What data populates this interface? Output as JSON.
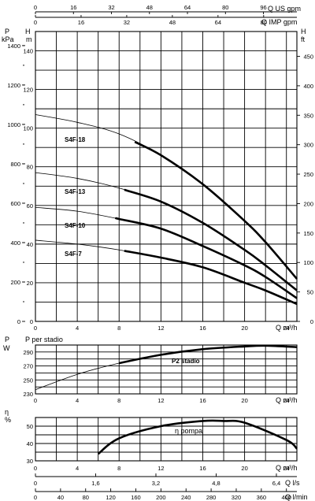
{
  "top_axes": {
    "us_gpm": {
      "label": "Q US gpm",
      "ticks": [
        "0",
        "16",
        "32",
        "48",
        "64",
        "80",
        "96"
      ]
    },
    "imp_gpm": {
      "label": "Q IMP gpm",
      "ticks": [
        "0",
        "16",
        "32",
        "48",
        "64",
        "80"
      ]
    }
  },
  "head_chart": {
    "p_label": "P",
    "p_unit": "kPa",
    "h_left_label": "H",
    "h_left_unit": "m",
    "h_right_label": "H",
    "h_right_unit": "ft",
    "p_ticks": [
      "0",
      "200",
      "400",
      "600",
      "800",
      "1000",
      "1200",
      "1400"
    ],
    "m_ticks": [
      "140",
      "120",
      "100",
      "80",
      "60",
      "40",
      "20",
      "0"
    ],
    "ft_ticks": [
      "0",
      "50",
      "100",
      "150",
      "200",
      "250",
      "300",
      "350",
      "400",
      "450"
    ],
    "x_ticks": [
      "0",
      "4",
      "8",
      "12",
      "16",
      "20",
      "24"
    ],
    "x_label": "Q m³/h"
  },
  "power_chart": {
    "title": "P per stadio",
    "unit": "W",
    "y_ticks": [
      "230",
      "250",
      "270",
      "290"
    ],
    "x_ticks": [
      "0",
      "4",
      "8",
      "12",
      "16",
      "20",
      "24"
    ],
    "x_label": "Q m³/h"
  },
  "eff_chart": {
    "symbol": "η",
    "unit": "%",
    "y_ticks": [
      "40",
      "50"
    ],
    "y_ticks_minor": [
      "30",
      "40"
    ],
    "x_ticks": [
      "0",
      "4",
      "8",
      "12",
      "16",
      "20",
      "24"
    ],
    "x_label": "Q m³/h"
  },
  "bottom_axes": {
    "ls": {
      "label": "Q l/s",
      "ticks": [
        "0",
        "1,6",
        "3,2",
        "4,8",
        "6,4"
      ]
    },
    "lmin": {
      "label": "Q l/min",
      "ticks": [
        "0",
        "40",
        "80",
        "120",
        "160",
        "200",
        "240",
        "280",
        "320",
        "360",
        "400"
      ]
    }
  },
  "chart_data": [
    {
      "type": "line",
      "xlabel": "Q m³/h",
      "ylabel": "H m",
      "xlim": [
        0,
        25
      ],
      "ylim": [
        0,
        150
      ],
      "series": [
        {
          "name": "S4F-18",
          "x": [
            0,
            4,
            8,
            12,
            16,
            20,
            22,
            25
          ],
          "y": [
            107,
            103,
            97,
            86,
            71,
            52,
            41,
            22
          ]
        },
        {
          "name": "S4F-13",
          "x": [
            0,
            4,
            8,
            12,
            16,
            20,
            22,
            25
          ],
          "y": [
            77,
            74,
            69,
            62,
            51,
            37,
            29,
            16
          ]
        },
        {
          "name": "S4F-10",
          "x": [
            0,
            4,
            8,
            12,
            16,
            20,
            22,
            25
          ],
          "y": [
            59,
            57,
            53,
            48,
            39,
            29,
            23,
            12
          ]
        },
        {
          "name": "S4F-7",
          "x": [
            0,
            4,
            8,
            12,
            16,
            20,
            22,
            25
          ],
          "y": [
            42,
            40,
            37,
            33,
            28,
            20,
            16,
            9
          ]
        }
      ]
    },
    {
      "type": "line",
      "title": "P per stadio",
      "xlabel": "Q m³/h",
      "ylabel": "W",
      "xlim": [
        0,
        25
      ],
      "ylim": [
        230,
        300
      ],
      "series": [
        {
          "name": "P2 stadio",
          "x": [
            0,
            4,
            8,
            12,
            16,
            20,
            22,
            25
          ],
          "y": [
            236,
            258,
            274,
            286,
            294,
            298,
            299,
            297
          ]
        }
      ]
    },
    {
      "type": "line",
      "xlabel": "Q m³/h",
      "ylabel": "η %",
      "xlim": [
        0,
        25
      ],
      "ylim": [
        30,
        55
      ],
      "series": [
        {
          "name": "η pompa",
          "x": [
            6,
            8,
            12,
            16,
            18,
            20,
            24,
            25
          ],
          "y": [
            34,
            43,
            50,
            53,
            53,
            52,
            42,
            37
          ]
        }
      ]
    }
  ]
}
